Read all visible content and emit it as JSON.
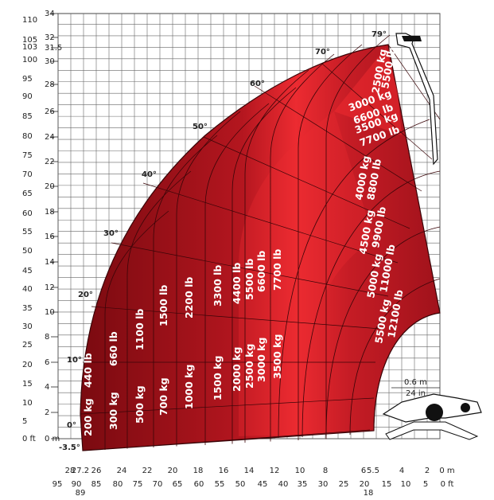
{
  "chart_data": {
    "type": "load_chart",
    "y_axis_left": {
      "m": [
        "34",
        "32",
        "31.5",
        "30",
        "28",
        "26",
        "24",
        "22",
        "20",
        "18",
        "16",
        "14",
        "12",
        "10",
        "8",
        "6",
        "4",
        "2",
        "0 m"
      ],
      "ft": [
        "110",
        "105",
        "103",
        "100",
        "95",
        "90",
        "85",
        "80",
        "75",
        "70",
        "65",
        "60",
        "55",
        "50",
        "45",
        "40",
        "35",
        "30",
        "25",
        "20",
        "15",
        "10",
        "5",
        "0 ft"
      ]
    },
    "x_axis_bottom": {
      "m": [
        "28",
        "27.2",
        "26",
        "24",
        "22",
        "20",
        "18",
        "16",
        "14",
        "12",
        "10",
        "8",
        "6",
        "5.5",
        "4",
        "2",
        "0 m"
      ],
      "ft": [
        "95",
        "90",
        "89",
        "85",
        "80",
        "75",
        "70",
        "65",
        "60",
        "55",
        "50",
        "45",
        "40",
        "35",
        "30",
        "25",
        "20",
        "18",
        "15",
        "10",
        "5",
        "0 ft"
      ]
    },
    "angles": [
      "-3.5°",
      "0°",
      "10°",
      "20°",
      "30°",
      "40°",
      "50°",
      "60°",
      "70°",
      "79°"
    ],
    "zones_vertical": [
      {
        "kg": "200 kg",
        "lb": "440 lb"
      },
      {
        "kg": "300 kg",
        "lb": "660 lb"
      },
      {
        "kg": "500 kg",
        "lb": "1100 lb"
      },
      {
        "kg": "700 kg",
        "lb": "1500 lb"
      },
      {
        "kg": "1000 kg",
        "lb": "2200 lb"
      },
      {
        "kg": "1500 kg",
        "lb": "3300 lb"
      },
      {
        "kg": "2000 kg",
        "lb": "4400 lb"
      },
      {
        "kg": "2500 kg",
        "lb": "5500 lb"
      },
      {
        "kg": "3000 kg",
        "lb": "6600 lb"
      },
      {
        "kg": "3500 kg",
        "lb": "7700 lb"
      }
    ],
    "zones_inner": [
      {
        "kg": "2500 kg",
        "lb": "5500 lb"
      },
      {
        "kg": "3000 kg",
        "lb": "6600 lb"
      },
      {
        "kg": "3500 kg",
        "lb": "7700 lb"
      },
      {
        "kg": "4000 kg",
        "lb": "8800 lb"
      },
      {
        "kg": "4500 kg",
        "lb": "9900 lb"
      },
      {
        "kg": "5000 kg",
        "lb": "11000 lb"
      },
      {
        "kg": "5500 kg",
        "lb": "12100 lb"
      }
    ],
    "dimension": {
      "m": "0.6 m",
      "in": "24 in"
    },
    "colors": {
      "outer": "#8b0a12",
      "mid": "#c21a24",
      "hot": "#ee2a30",
      "grid": "#555555"
    }
  }
}
